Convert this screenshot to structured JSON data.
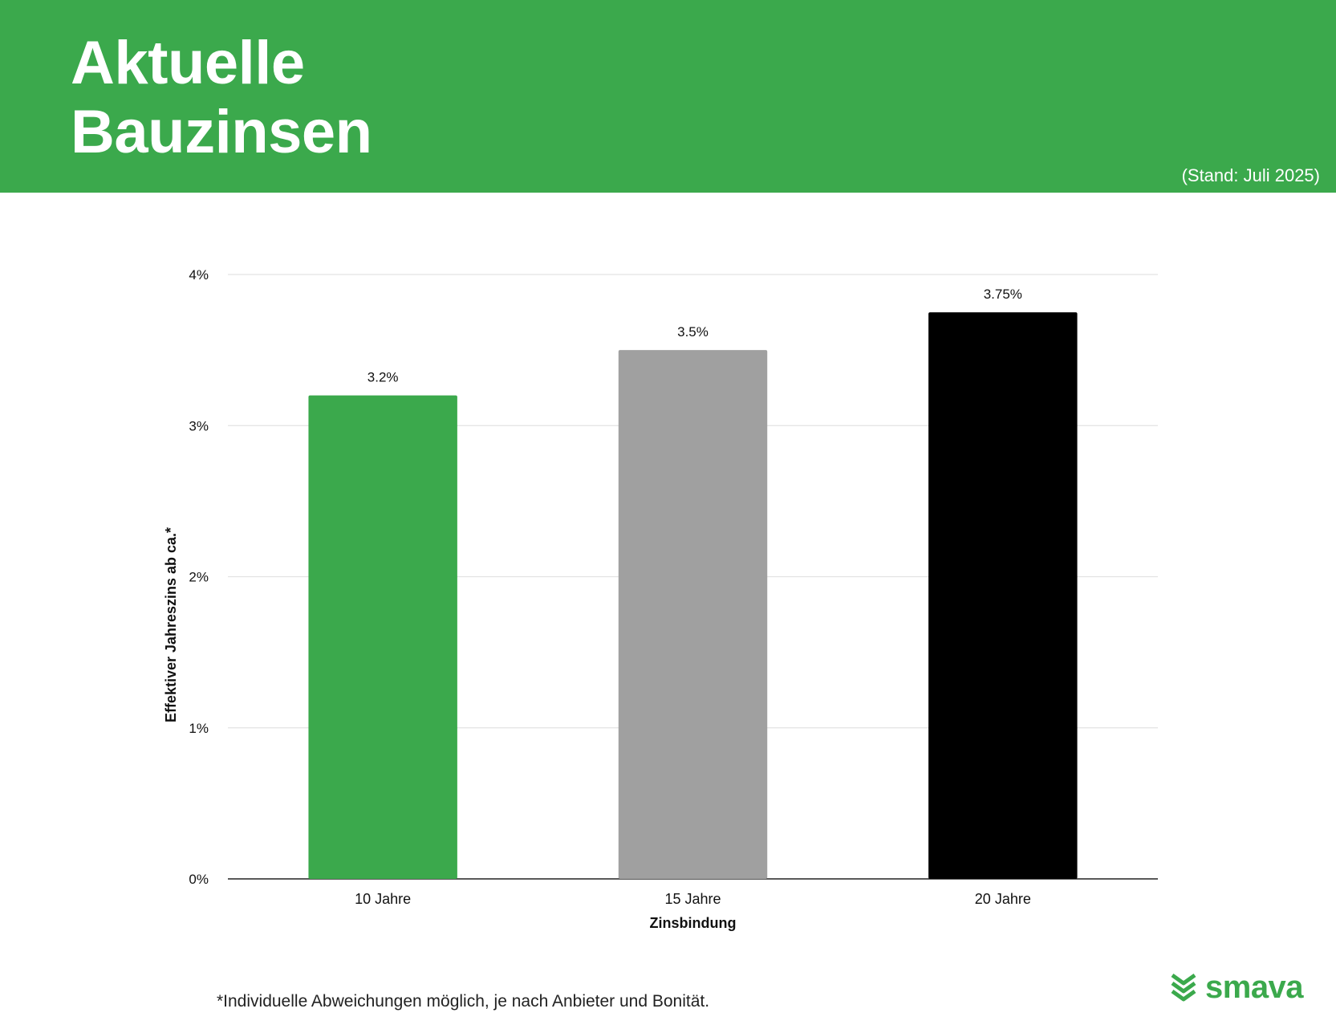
{
  "header": {
    "title_line1": "Aktuelle",
    "title_line2": "Bauzinsen",
    "stand": "(Stand: Juli 2025)",
    "background_color": "#3ba94c"
  },
  "chart_data": {
    "type": "bar",
    "categories": [
      "10 Jahre",
      "15 Jahre",
      "20 Jahre"
    ],
    "values": [
      3.2,
      3.5,
      3.75
    ],
    "value_labels": [
      "3.2%",
      "3.5%",
      "3.75%"
    ],
    "colors": [
      "#3ba94c",
      "#a0a0a0",
      "#000000"
    ],
    "xlabel": "Zinsbindung",
    "ylabel": "Effektiver Jahreszins ab ca.*",
    "ylim": [
      0,
      4
    ],
    "yticks": [
      0,
      1,
      2,
      3,
      4
    ],
    "ytick_labels": [
      "0%",
      "1%",
      "2%",
      "3%",
      "4%"
    ],
    "grid": true,
    "legend": "none"
  },
  "footnote": "*Individuelle Abweichungen möglich, je nach Anbieter und Bonität.",
  "logo": {
    "text": "smava",
    "icon": "smava-chevron-logo-icon"
  }
}
